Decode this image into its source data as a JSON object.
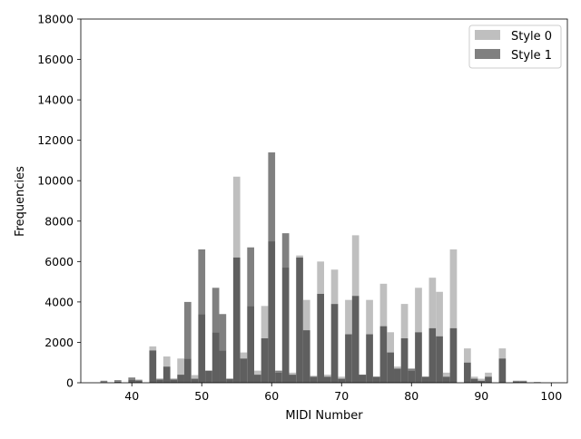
{
  "chart_data": {
    "type": "bar",
    "title": "",
    "xlabel": "MIDI Number",
    "ylabel": "Frequencies",
    "xlim": [
      32.7,
      102.3
    ],
    "ylim": [
      0,
      18000
    ],
    "xticks": [
      40,
      50,
      60,
      70,
      80,
      90,
      100
    ],
    "yticks": [
      0,
      2000,
      4000,
      6000,
      8000,
      10000,
      12000,
      14000,
      16000,
      18000
    ],
    "grid": false,
    "legend_position": "top-right",
    "bin_width": 1,
    "colors": {
      "style0": "#bfbfbf",
      "style1": "#808080",
      "overlap": "#5f5f5f"
    },
    "x": [
      36,
      38,
      40,
      41,
      43,
      44,
      45,
      46,
      47,
      48,
      49,
      50,
      51,
      52,
      53,
      54,
      55,
      56,
      57,
      58,
      59,
      60,
      61,
      62,
      63,
      64,
      65,
      66,
      67,
      68,
      69,
      70,
      71,
      72,
      73,
      74,
      75,
      76,
      77,
      78,
      79,
      80,
      81,
      82,
      83,
      84,
      85,
      86,
      88,
      89,
      90,
      91,
      93,
      95,
      96,
      98
    ],
    "series": [
      {
        "name": "Style 0",
        "values": [
          30,
          50,
          150,
          100,
          1800,
          150,
          1300,
          150,
          1200,
          1200,
          380,
          3400,
          600,
          2500,
          1600,
          200,
          10200,
          1500,
          3800,
          600,
          3800,
          7000,
          500,
          5700,
          500,
          6300,
          4100,
          350,
          6000,
          400,
          5600,
          300,
          4100,
          7300,
          400,
          4100,
          300,
          4900,
          2500,
          800,
          3900,
          600,
          4700,
          300,
          5200,
          4500,
          500,
          6600,
          1700,
          300,
          200,
          500,
          1700,
          50,
          50,
          30
        ]
      },
      {
        "name": "Style 1",
        "values": [
          100,
          130,
          260,
          150,
          1600,
          200,
          800,
          200,
          400,
          4000,
          200,
          6600,
          600,
          4700,
          3400,
          200,
          6200,
          1200,
          6700,
          400,
          2200,
          11400,
          600,
          7400,
          400,
          6200,
          2600,
          300,
          4400,
          300,
          3900,
          200,
          2400,
          4300,
          400,
          2400,
          300,
          2800,
          1500,
          700,
          2200,
          700,
          2500,
          300,
          2700,
          2300,
          300,
          2700,
          1000,
          200,
          100,
          300,
          1200,
          100,
          100,
          30
        ]
      }
    ]
  }
}
